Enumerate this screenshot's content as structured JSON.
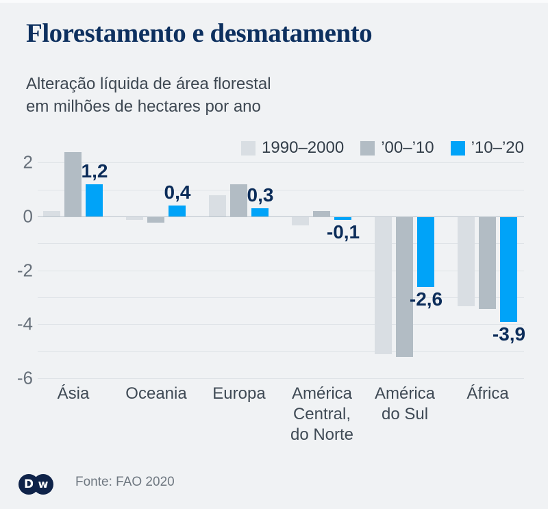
{
  "header": {
    "title": "Florestamento e desmatamento",
    "subtitle_line1": "Alteração líquida de área florestal",
    "subtitle_line2": "em milhões de hectares por ano"
  },
  "colors": {
    "background": "#f0f2f4",
    "title_navy": "#0d305f",
    "series_1990_2000": "#d9dee3",
    "series_00_10": "#b2bcc4",
    "series_10_20": "#00a3f8",
    "value_label_navy": "#0b2c59",
    "gridline": "#dfe3e7",
    "zero_line": "#b9c2ca",
    "logo_navy": "#0f2349"
  },
  "chart_data": {
    "type": "bar",
    "title": "Florestamento e desmatamento",
    "subtitle": "Alteração líquida de área florestal em milhões de hectares por ano",
    "categories": [
      {
        "name": "Ásia",
        "lines": [
          "Ásia"
        ]
      },
      {
        "name": "Oceania",
        "lines": [
          "Oceania"
        ]
      },
      {
        "name": "Europa",
        "lines": [
          "Europa"
        ]
      },
      {
        "name": "América Central, do Norte",
        "lines": [
          "América",
          "Central,",
          "do Norte"
        ]
      },
      {
        "name": "América do Sul",
        "lines": [
          "América",
          "do Sul"
        ]
      },
      {
        "name": "África",
        "lines": [
          "África"
        ]
      }
    ],
    "series": [
      {
        "name": "1990–2000",
        "color": "#d9dee3",
        "values": [
          0.2,
          -0.1,
          0.8,
          -0.3,
          -5.1,
          -3.3
        ]
      },
      {
        "name": "’00–’10",
        "color": "#b2bcc4",
        "values": [
          2.4,
          -0.2,
          1.2,
          0.2,
          -5.2,
          -3.4
        ]
      },
      {
        "name": "’10–’20",
        "color": "#00a3f8",
        "values": [
          1.2,
          0.4,
          0.3,
          -0.1,
          -2.6,
          -3.9
        ],
        "value_labels": [
          "1,2",
          "0,4",
          "0,3",
          "-0,1",
          "-2,6",
          "-3,9"
        ]
      }
    ],
    "y_ticks": [
      2,
      0,
      -2,
      -4,
      -6
    ],
    "gridline_values": [
      2,
      1,
      0,
      -1,
      -2,
      -3,
      -4,
      -5,
      -6
    ],
    "ylim": [
      -6,
      2.5
    ],
    "grid": true,
    "legend_position": "top-right",
    "ylabel": "milhões de hectares por ano",
    "xlabel": ""
  },
  "footer": {
    "source": "Fonte: FAO 2020",
    "logo_left_letter": "D",
    "logo_right_letter": "w"
  }
}
